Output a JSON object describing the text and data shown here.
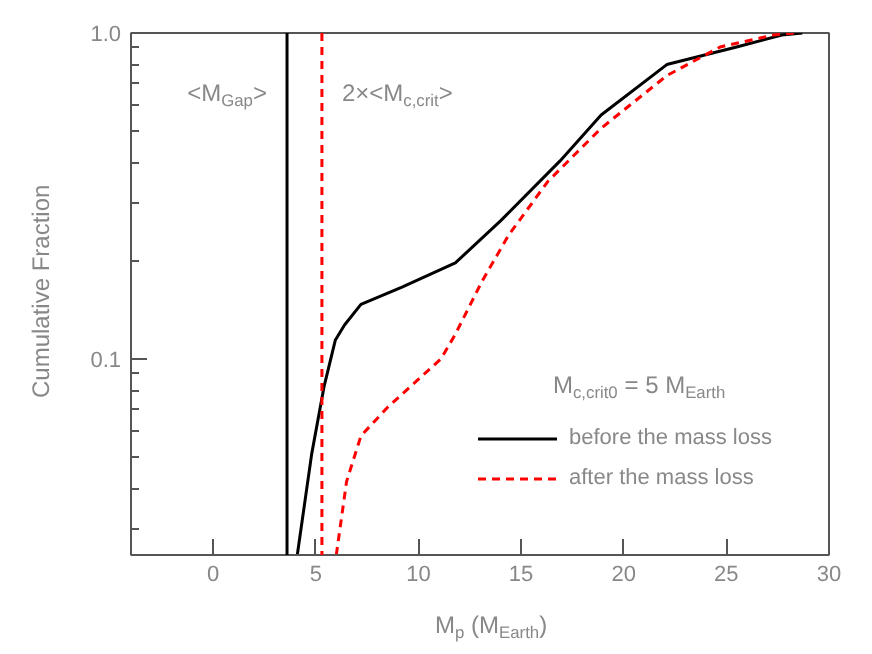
{
  "chart_data": {
    "type": "line",
    "xlabel": "M$_{p}$ (M$_{Earth}$)",
    "ylabel": "Cumulative Fraction",
    "xlim": [
      -4,
      30
    ],
    "xticks": [
      0,
      5,
      10,
      15,
      20,
      25,
      30
    ],
    "ylim": [
      0.025,
      1.0
    ],
    "yticks": [
      {
        "value": 0.1,
        "label": "0.1"
      },
      {
        "value": 1.0,
        "label": "1.0"
      },
      {
        "value": 0.03,
        "label": null
      },
      {
        "value": 0.04,
        "label": null
      },
      {
        "value": 0.05,
        "label": null
      },
      {
        "value": 0.06,
        "label": null
      },
      {
        "value": 0.07,
        "label": null
      },
      {
        "value": 0.08,
        "label": null
      },
      {
        "value": 0.09,
        "label": null
      },
      {
        "value": 0.2,
        "label": null
      },
      {
        "value": 0.3,
        "label": null
      },
      {
        "value": 0.4,
        "label": null
      },
      {
        "value": 0.5,
        "label": null
      },
      {
        "value": 0.6,
        "label": null
      },
      {
        "value": 0.7,
        "label": null
      },
      {
        "value": 0.8,
        "label": null
      },
      {
        "value": 0.9,
        "label": null
      }
    ],
    "log": "y",
    "grid": false,
    "legend": "bottom right",
    "marker": "none",
    "series": [
      {
        "name": "before the mass loss",
        "color": "#000000",
        "line_style": "solid",
        "x": [
          4.1,
          4.8,
          5.4,
          5.95,
          6.4,
          7.2,
          9.2,
          11.8,
          14.0,
          16.9,
          18.9,
          22.1,
          25.5,
          27.7,
          28.7
        ],
        "values": [
          0.025,
          0.051,
          0.082,
          0.114,
          0.127,
          0.147,
          0.166,
          0.197,
          0.265,
          0.405,
          0.56,
          0.8,
          0.906,
          0.986,
          1.0
        ]
      },
      {
        "name": "after the mass loss",
        "color": "#ff0000",
        "line_style": "dashed",
        "x": [
          6.0,
          6.5,
          7.2,
          8.5,
          11.1,
          11.8,
          13.1,
          14.4,
          16.3,
          18.9,
          22.1,
          24.7,
          27.3,
          28.3
        ],
        "values": [
          0.025,
          0.042,
          0.058,
          0.071,
          0.1,
          0.119,
          0.173,
          0.24,
          0.35,
          0.51,
          0.74,
          0.906,
          0.986,
          1.0
        ]
      }
    ],
    "ref_lines": [
      {
        "axis": "x",
        "value": 3.6,
        "label": "<M$_{Gap}$>",
        "color": "#000000",
        "line_style": "solid"
      },
      {
        "axis": "x",
        "value": 5.3,
        "label": "2×<M$_{c,crit}$>",
        "color": "#ff0000",
        "line_style": "dashed"
      }
    ],
    "annotations": [
      "M$_{c,crit0}$ = 5 M$_{Earth}$"
    ]
  }
}
